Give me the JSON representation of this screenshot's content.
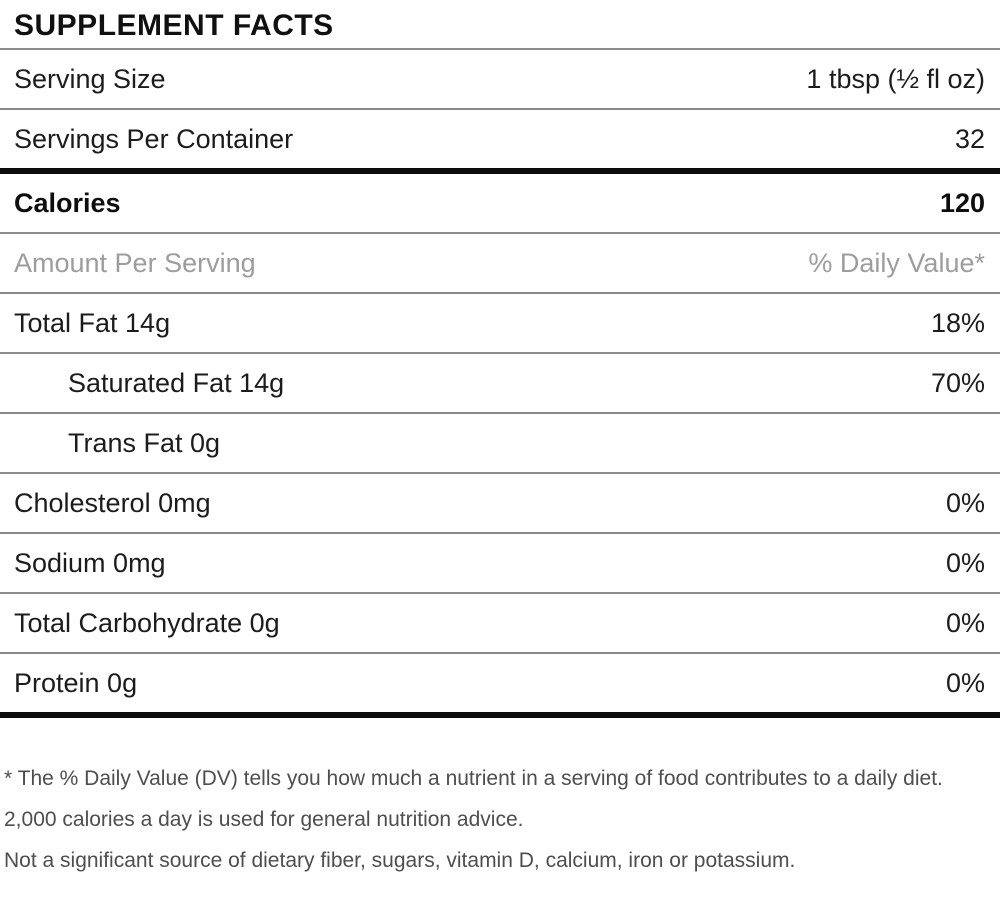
{
  "title": "SUPPLEMENT FACTS",
  "serving_info": [
    {
      "label": "Serving Size",
      "value": "1 tbsp (½ fl oz)"
    },
    {
      "label": "Servings Per Container",
      "value": "32"
    }
  ],
  "calories": {
    "label": "Calories",
    "value": "120"
  },
  "column_headers": {
    "left": "Amount Per Serving",
    "right": "% Daily Value*"
  },
  "nutrients": [
    {
      "label": "Total Fat 14g",
      "daily_value": "18%",
      "indent": false
    },
    {
      "label": "Saturated Fat 14g",
      "daily_value": "70%",
      "indent": true
    },
    {
      "label": "Trans Fat 0g",
      "daily_value": "",
      "indent": true
    },
    {
      "label": "Cholesterol 0mg",
      "daily_value": "0%",
      "indent": false
    },
    {
      "label": "Sodium 0mg",
      "daily_value": "0%",
      "indent": false
    },
    {
      "label": "Total Carbohydrate 0g",
      "daily_value": "0%",
      "indent": false
    },
    {
      "label": "Protein 0g",
      "daily_value": "0%",
      "indent": false
    }
  ],
  "footnotes": [
    "* The % Daily Value (DV) tells you how much a nutrient in a serving of food contributes to a daily diet. 2,000 calories a day is used for general nutrition advice.",
    "Not a significant source of dietary fiber, sugars, vitamin D, calcium, iron or potassium."
  ],
  "colors": {
    "text": "#1c1c1c",
    "muted_text": "#9d9d9d",
    "footnote_text": "#4e4e4e",
    "thin_rule": "#8b8b8b",
    "thick_rule": "#0c0c0c"
  }
}
